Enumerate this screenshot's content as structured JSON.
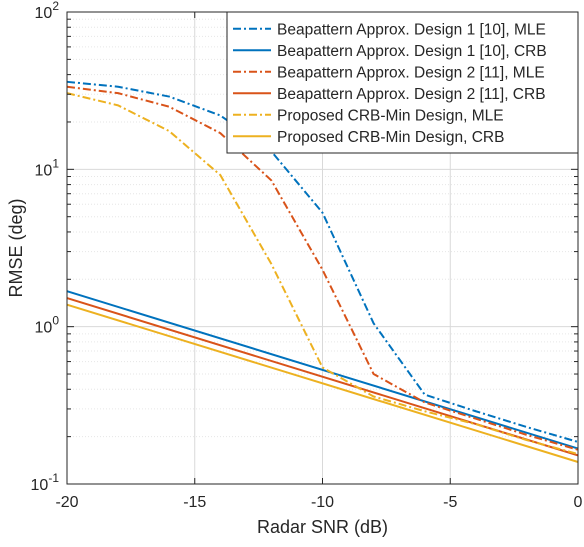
{
  "chart_data": {
    "type": "line",
    "title": "",
    "xlabel": "Radar SNR (dB)",
    "ylabel": "RMSE (deg)",
    "xlim": [
      -20,
      0
    ],
    "ylim": [
      0.1,
      100
    ],
    "yscale": "log",
    "grid": true,
    "legend_position": "top-right",
    "x_ticks": [
      {
        "value": -20,
        "label": "-20"
      },
      {
        "value": -15,
        "label": "-15"
      },
      {
        "value": -10,
        "label": "-10"
      },
      {
        "value": -5,
        "label": "-5"
      },
      {
        "value": 0,
        "label": "0"
      }
    ],
    "y_ticks": [
      {
        "value": 0.1,
        "base": "10",
        "exp": "-1"
      },
      {
        "value": 1,
        "base": "10",
        "exp": "0"
      },
      {
        "value": 10,
        "base": "10",
        "exp": "1"
      },
      {
        "value": 100,
        "base": "10",
        "exp": "2"
      }
    ],
    "series": [
      {
        "name": "Beapattern Approx. Design 1 [10], MLE",
        "color": "#0072BD",
        "dash": "dashdot",
        "x": [
          -20,
          -18,
          -16,
          -14,
          -12,
          -10,
          -8,
          -6,
          -4,
          -2,
          0
        ],
        "y": [
          36,
          33.5,
          29,
          22,
          13,
          5.3,
          1.05,
          0.37,
          0.29,
          0.23,
          0.185
        ]
      },
      {
        "name": "Beapattern Approx. Design 1 [10], CRB",
        "color": "#0072BD",
        "dash": "solid",
        "x": [
          -20,
          0
        ],
        "y": [
          1.68,
          0.168
        ]
      },
      {
        "name": "Beapattern Approx. Design 2 [11], MLE",
        "color": "#D95319",
        "dash": "dashdot",
        "x": [
          -20,
          -18,
          -16,
          -14,
          -12,
          -10,
          -8,
          -6,
          -4,
          -2,
          0
        ],
        "y": [
          33.5,
          30.5,
          25,
          17,
          8.5,
          2.3,
          0.5,
          0.33,
          0.26,
          0.205,
          0.165
        ]
      },
      {
        "name": "Beapattern Approx. Design 2 [11], CRB",
        "color": "#D95319",
        "dash": "solid",
        "x": [
          -20,
          0
        ],
        "y": [
          1.52,
          0.152
        ]
      },
      {
        "name": "Proposed CRB-Min Design, MLE",
        "color": "#EDB120",
        "dash": "dashdot",
        "x": [
          -20,
          -18,
          -16,
          -14,
          -12,
          -10,
          -8,
          -6,
          -4,
          -2,
          0
        ],
        "y": [
          30.5,
          25.5,
          17.5,
          9.2,
          2.5,
          0.55,
          0.36,
          0.29,
          0.24,
          0.19,
          0.155
        ]
      },
      {
        "name": "Proposed CRB-Min Design, CRB",
        "color": "#EDB120",
        "dash": "solid",
        "x": [
          -20,
          0
        ],
        "y": [
          1.38,
          0.138
        ]
      }
    ]
  }
}
